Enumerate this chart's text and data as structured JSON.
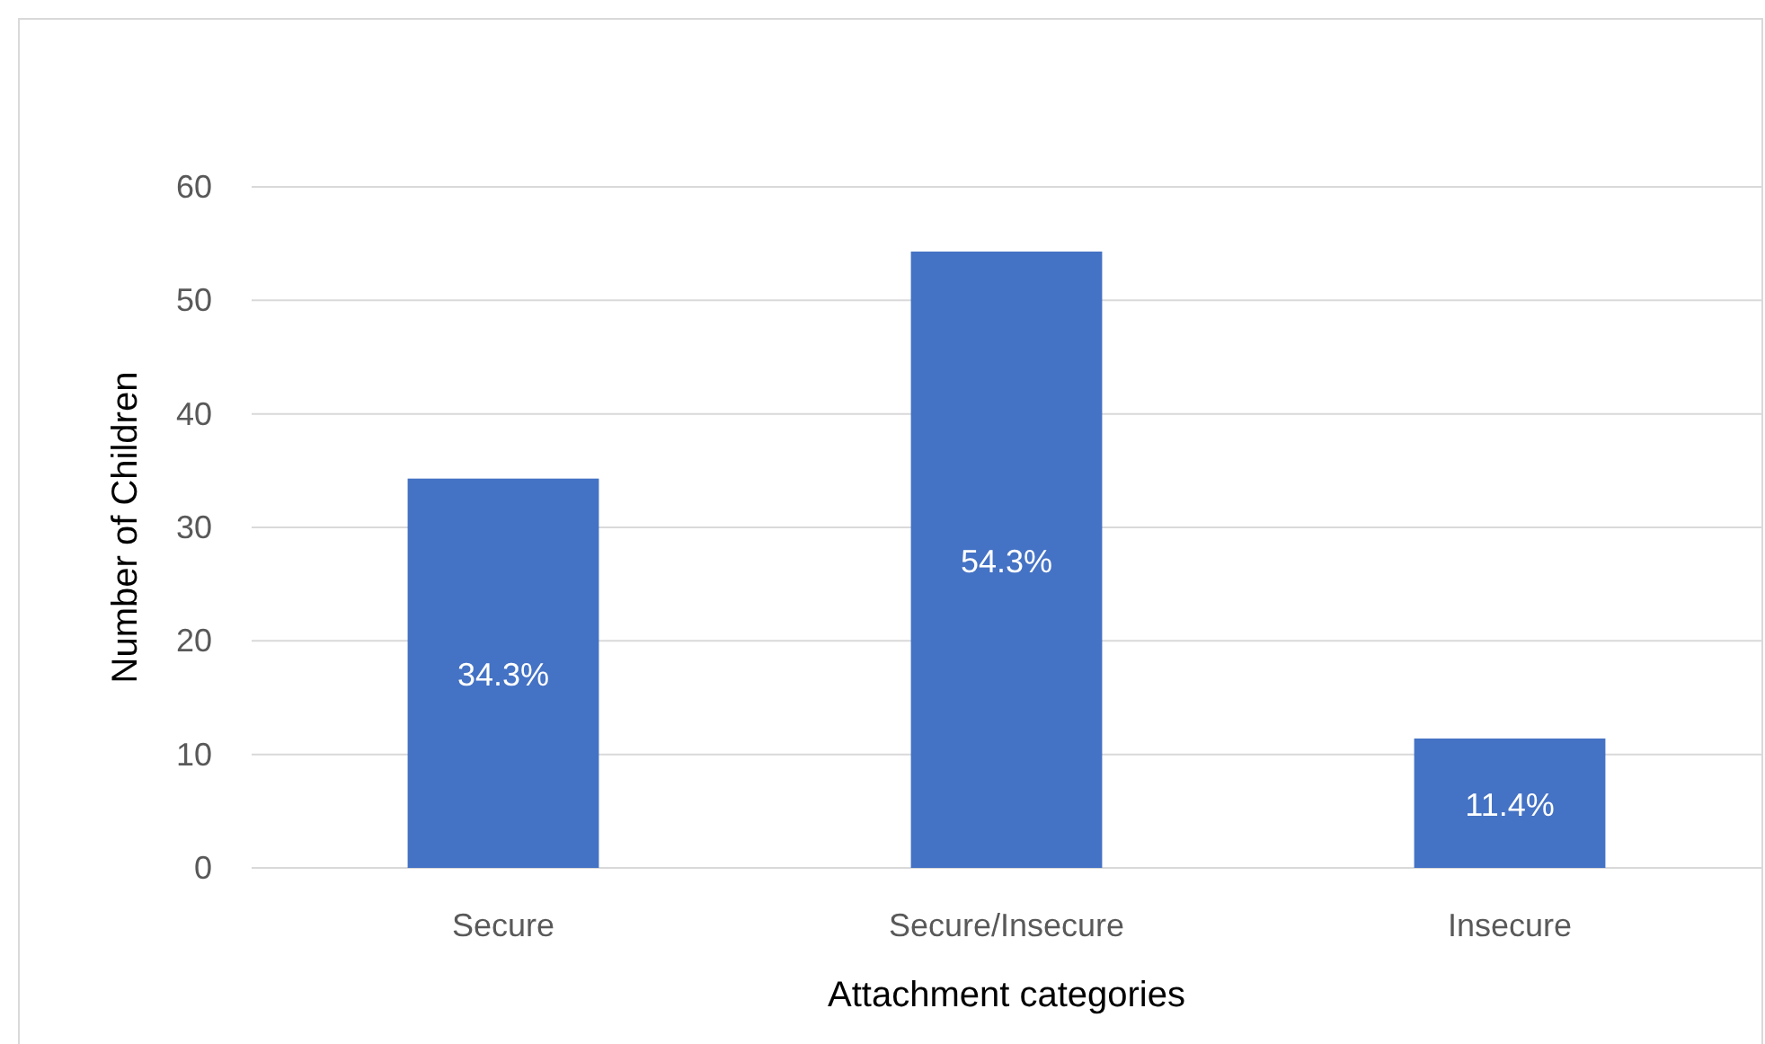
{
  "chart_data": {
    "type": "bar",
    "xlabel": "Attachment categories",
    "ylabel": "Number of Children",
    "categories": [
      "Secure",
      "Secure/Insecure",
      "Insecure"
    ],
    "values": [
      34.3,
      54.3,
      11.4
    ],
    "value_labels": [
      "34.3%",
      "54.3%",
      "11.4%"
    ],
    "color": "#4472c4",
    "ylim": [
      0,
      60
    ],
    "yticks": [
      0,
      10,
      20,
      30,
      40,
      50,
      60
    ],
    "grid": "y"
  }
}
